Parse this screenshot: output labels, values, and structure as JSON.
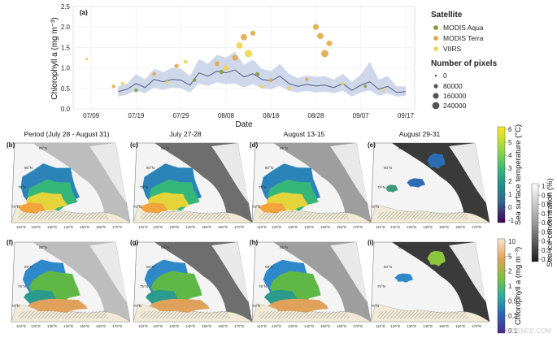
{
  "top_chart": {
    "panel_label": "(a)",
    "ylabel": "Chlorophyll a (mg m⁻³)",
    "xlabel": "Date",
    "yticks": [
      "0.0",
      "0.5",
      "1.0",
      "1.5",
      "2.0",
      "2.5"
    ],
    "xticks": [
      "07/09",
      "07/19",
      "07/29",
      "08/08",
      "08/18",
      "08/28",
      "09/07",
      "09/17"
    ]
  },
  "legend": {
    "satellite_title": "Satellite",
    "satellites": [
      {
        "label": "MODIS Aqua",
        "color": "#7e9a2c"
      },
      {
        "label": "MODIS Terra",
        "color": "#e0a43c"
      },
      {
        "label": "VIIRS",
        "color": "#f0d24a"
      }
    ],
    "pixels_title": "Number of pixels",
    "pixels": [
      "0",
      "80000",
      "160000",
      "240000"
    ]
  },
  "chart_data": {
    "type": "scatter",
    "title": "",
    "xlabel": "Date",
    "ylabel": "Chlorophyll a (mg m⁻³)",
    "ylim": [
      0,
      2.5
    ],
    "x_range_days": [
      "07/09",
      "09/17"
    ],
    "line_series": {
      "name": "",
      "x": [
        "07/15",
        "07/17",
        "07/19",
        "07/21",
        "07/23",
        "07/25",
        "07/27",
        "07/29",
        "07/31",
        "08/02",
        "08/04",
        "08/06",
        "08/08",
        "08/10",
        "08/12",
        "08/14",
        "08/16",
        "08/18",
        "08/20",
        "08/22",
        "08/24",
        "08/26",
        "08/28",
        "08/30",
        "09/01",
        "09/03",
        "09/05",
        "09/07",
        "09/09",
        "09/11",
        "09/13",
        "09/15",
        "09/17"
      ],
      "y": [
        0.42,
        0.48,
        0.62,
        0.52,
        0.72,
        0.66,
        0.72,
        0.7,
        0.58,
        0.88,
        0.8,
        0.92,
        0.88,
        0.95,
        0.78,
        0.86,
        0.72,
        0.68,
        0.8,
        0.62,
        0.55,
        0.6,
        0.56,
        0.58,
        0.52,
        0.62,
        0.45,
        0.58,
        0.66,
        0.48,
        0.55,
        0.4,
        0.42
      ],
      "ci_low": [
        0.3,
        0.35,
        0.45,
        0.38,
        0.52,
        0.46,
        0.52,
        0.5,
        0.4,
        0.62,
        0.56,
        0.65,
        0.6,
        0.62,
        0.52,
        0.6,
        0.5,
        0.48,
        0.56,
        0.44,
        0.4,
        0.44,
        0.4,
        0.42,
        0.38,
        0.44,
        0.3,
        0.4,
        0.45,
        0.32,
        0.38,
        0.3,
        0.32
      ],
      "ci_high": [
        0.55,
        0.62,
        0.85,
        0.72,
        0.98,
        0.9,
        1.0,
        0.98,
        0.8,
        1.22,
        1.1,
        1.32,
        1.25,
        1.4,
        1.08,
        1.2,
        0.98,
        0.92,
        1.1,
        0.86,
        0.75,
        0.82,
        0.78,
        0.8,
        0.72,
        0.86,
        0.66,
        0.84,
        1.15,
        0.72,
        0.8,
        0.55,
        0.55
      ]
    },
    "points": [
      {
        "x": "07/08",
        "y": 1.22,
        "sat": "VIIRS",
        "n": 10000
      },
      {
        "x": "07/14",
        "y": 0.55,
        "sat": "MODIS Terra",
        "n": 15000
      },
      {
        "x": "07/16",
        "y": 0.62,
        "sat": "VIIRS",
        "n": 12000
      },
      {
        "x": "07/19",
        "y": 0.45,
        "sat": "MODIS Aqua",
        "n": 20000
      },
      {
        "x": "07/23",
        "y": 0.85,
        "sat": "MODIS Terra",
        "n": 25000
      },
      {
        "x": "07/26",
        "y": 0.65,
        "sat": "VIIRS",
        "n": 18000
      },
      {
        "x": "07/28",
        "y": 1.05,
        "sat": "MODIS Terra",
        "n": 40000
      },
      {
        "x": "07/30",
        "y": 1.15,
        "sat": "VIIRS",
        "n": 30000
      },
      {
        "x": "08/01",
        "y": 0.7,
        "sat": "MODIS Aqua",
        "n": 15000
      },
      {
        "x": "08/06",
        "y": 1.1,
        "sat": "MODIS Terra",
        "n": 60000
      },
      {
        "x": "08/07",
        "y": 0.9,
        "sat": "MODIS Aqua",
        "n": 45000
      },
      {
        "x": "08/08",
        "y": 1.0,
        "sat": "VIIRS",
        "n": 90000
      },
      {
        "x": "08/10",
        "y": 1.25,
        "sat": "MODIS Terra",
        "n": 110000
      },
      {
        "x": "08/11",
        "y": 1.55,
        "sat": "VIIRS",
        "n": 160000
      },
      {
        "x": "08/12",
        "y": 1.75,
        "sat": "MODIS Terra",
        "n": 150000
      },
      {
        "x": "08/13",
        "y": 1.35,
        "sat": "VIIRS",
        "n": 240000
      },
      {
        "x": "08/14",
        "y": 1.85,
        "sat": "MODIS Terra",
        "n": 80000
      },
      {
        "x": "08/15",
        "y": 0.85,
        "sat": "MODIS Aqua",
        "n": 40000
      },
      {
        "x": "08/16",
        "y": 0.55,
        "sat": "VIIRS",
        "n": 30000
      },
      {
        "x": "08/18",
        "y": 0.7,
        "sat": "MODIS Terra",
        "n": 25000
      },
      {
        "x": "08/22",
        "y": 0.5,
        "sat": "VIIRS",
        "n": 20000
      },
      {
        "x": "08/26",
        "y": 0.72,
        "sat": "MODIS Terra",
        "n": 15000
      },
      {
        "x": "08/28",
        "y": 2.0,
        "sat": "MODIS Terra",
        "n": 120000
      },
      {
        "x": "08/29",
        "y": 1.78,
        "sat": "MODIS Terra",
        "n": 150000
      },
      {
        "x": "08/30",
        "y": 1.35,
        "sat": "MODIS Terra",
        "n": 220000
      },
      {
        "x": "08/31",
        "y": 1.6,
        "sat": "MODIS Terra",
        "n": 110000
      },
      {
        "x": "09/03",
        "y": 0.62,
        "sat": "VIIRS",
        "n": 12000
      },
      {
        "x": "09/08",
        "y": 0.55,
        "sat": "MODIS Aqua",
        "n": 8000
      },
      {
        "x": "09/12",
        "y": 0.45,
        "sat": "VIIRS",
        "n": 8000
      }
    ]
  },
  "maps": {
    "row1_titles": [
      "Period (July 28 - August 31)",
      "July 27-28",
      "August 13-15",
      "August 29-31"
    ],
    "row1_labels": [
      "(b)",
      "(c)",
      "(d)",
      "(e)"
    ],
    "row2_labels": [
      "(f)",
      "(g)",
      "(h)",
      "(i)"
    ],
    "lat_labels": [
      "85°N",
      "80°N",
      "75°N",
      "70°N"
    ],
    "lon_labels": [
      "110°E",
      "120°E",
      "130°E",
      "140°E",
      "150°E",
      "160°E",
      "170°E"
    ]
  },
  "colorbars": {
    "sst_label": "Sea surface temperature (°C)",
    "sst_ticks": [
      "6",
      "5",
      "4",
      "3",
      "2",
      "1",
      "0",
      "-1"
    ],
    "ice_label": "Sea-ice concentration (%)",
    "ice_ticks": [
      "1",
      "0.9",
      "0.8",
      "0.7",
      "0.6",
      "0.5",
      "0.4",
      "0.3",
      "0.2"
    ],
    "chl_label": "Chlorophyll a (mg m⁻³)",
    "chl_ticks": [
      "10",
      "5",
      "2",
      "1",
      "0.5",
      "0.2",
      "0.1"
    ]
  },
  "watermark": "SCIENCE.COM"
}
